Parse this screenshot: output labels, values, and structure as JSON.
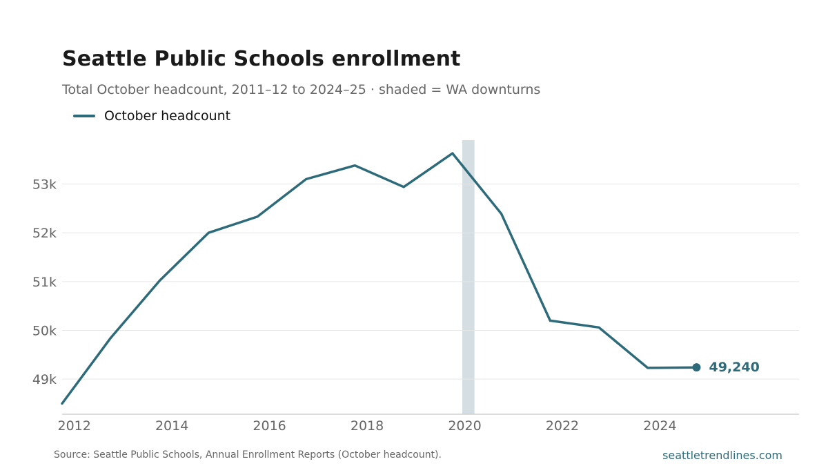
{
  "header": {
    "title": "Seattle Public Schools enrollment",
    "subtitle": "Total October headcount, 2011–12 to 2024–25 · shaded = WA downturns"
  },
  "footer": {
    "source": "Source: Seattle Public Schools, Annual Enrollment Reports (October headcount).",
    "site": "seattletrendlines.com"
  },
  "colors": {
    "line": "#2e6b7a",
    "shade": "#d5dee3",
    "grid": "#e6e6e6",
    "axis": "#d0d0d0",
    "tick_text": "#666666"
  },
  "chart_data": {
    "type": "line",
    "legend": {
      "position": "top-left",
      "entries": [
        "October headcount"
      ]
    },
    "x_ticks": [
      2012,
      2014,
      2016,
      2018,
      2020,
      2022,
      2024
    ],
    "y_ticks": [
      49000,
      50000,
      51000,
      52000,
      53000
    ],
    "y_tick_labels": [
      "49k",
      "50k",
      "51k",
      "52k",
      "53k"
    ],
    "xlim": [
      2011.75,
      2026.85
    ],
    "ylim": [
      48280,
      53900
    ],
    "grid": "horizontal",
    "shaded_ranges": [
      [
        2019.95,
        2020.2
      ]
    ],
    "series": [
      {
        "name": "October headcount",
        "x": [
          2011.75,
          2012.75,
          2013.75,
          2014.75,
          2015.75,
          2016.75,
          2017.75,
          2018.75,
          2019.75,
          2020.75,
          2021.75,
          2022.75,
          2023.75,
          2024.75
        ],
        "values": [
          48500,
          49850,
          51020,
          52000,
          52330,
          53100,
          53380,
          52940,
          53630,
          52390,
          50200,
          50060,
          49230,
          49240
        ]
      }
    ],
    "annotation": {
      "label": "49,240",
      "x": 2024.75,
      "y": 49240
    }
  }
}
